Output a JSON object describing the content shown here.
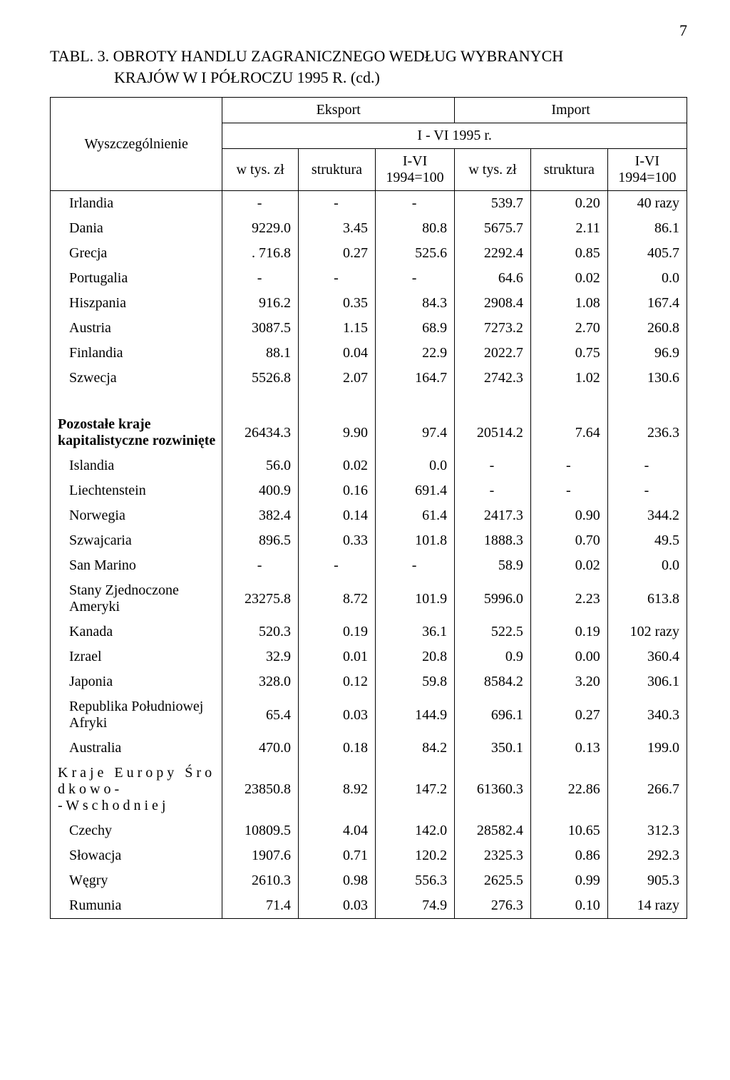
{
  "page_number": "7",
  "title": "TABL. 3. OBROTY HANDLU ZAGRANICZNEGO WEDŁUG WYBRANYCH",
  "subtitle": "KRAJÓW W I PÓŁROCZU 1995 R. (cd.)",
  "header": {
    "wys": "Wyszczególnienie",
    "eksport": "Eksport",
    "import": "Import",
    "period": "I - VI 1995 r.",
    "wtys": "w tys. zł",
    "struktura": "struktura",
    "idx": "I-VI 1994=100"
  },
  "rows": [
    {
      "indent": 1,
      "label": "Irlandia",
      "e1": "-",
      "e2": "-",
      "e3": "-",
      "i1": "539.7",
      "i2": "0.20",
      "i3": "40 razy"
    },
    {
      "indent": 1,
      "label": "Dania",
      "e1": "9229.0",
      "e2": "3.45",
      "e3": "80.8",
      "i1": "5675.7",
      "i2": "2.11",
      "i3": "86.1"
    },
    {
      "indent": 1,
      "label": "Grecja",
      "e1": ". 716.8",
      "e2": "0.27",
      "e3": "525.6",
      "i1": "2292.4",
      "i2": "0.85",
      "i3": "405.7"
    },
    {
      "indent": 1,
      "label": "Portugalia",
      "e1": "-",
      "e2": "-",
      "e3": "-",
      "i1": "64.6",
      "i2": "0.02",
      "i3": "0.0"
    },
    {
      "indent": 1,
      "label": "Hiszpania",
      "e1": "916.2",
      "e2": "0.35",
      "e3": "84.3",
      "i1": "2908.4",
      "i2": "1.08",
      "i3": "167.4"
    },
    {
      "indent": 1,
      "label": "Austria",
      "e1": "3087.5",
      "e2": "1.15",
      "e3": "68.9",
      "i1": "7273.2",
      "i2": "2.70",
      "i3": "260.8"
    },
    {
      "indent": 1,
      "label": "Finlandia",
      "e1": "88.1",
      "e2": "0.04",
      "e3": "22.9",
      "i1": "2022.7",
      "i2": "0.75",
      "i3": "96.9"
    },
    {
      "indent": 1,
      "label": "Szwecja",
      "e1": "5526.8",
      "e2": "2.07",
      "e3": "164.7",
      "i1": "2742.3",
      "i2": "1.02",
      "i3": "130.6"
    },
    {
      "spacer": true
    },
    {
      "indent": 0,
      "bold": true,
      "label": "Pozostałe kraje kapitalistyczne rozwinięte",
      "e1": "26434.3",
      "e2": "9.90",
      "e3": "97.4",
      "i1": "20514.2",
      "i2": "7.64",
      "i3": "236.3"
    },
    {
      "indent": 1,
      "label": "Islandia",
      "e1": "56.0",
      "e2": "0.02",
      "e3": "0.0",
      "i1": "-",
      "i2": "-",
      "i3": "-"
    },
    {
      "indent": 1,
      "label": "Liechtenstein",
      "e1": "400.9",
      "e2": "0.16",
      "e3": "691.4",
      "i1": "-",
      "i2": "-",
      "i3": "-"
    },
    {
      "indent": 1,
      "label": "Norwegia",
      "e1": "382.4",
      "e2": "0.14",
      "e3": "61.4",
      "i1": "2417.3",
      "i2": "0.90",
      "i3": "344.2"
    },
    {
      "indent": 1,
      "label": "Szwajcaria",
      "e1": "896.5",
      "e2": "0.33",
      "e3": "101.8",
      "i1": "1888.3",
      "i2": "0.70",
      "i3": "49.5"
    },
    {
      "indent": 1,
      "label": "San Marino",
      "e1": "-",
      "e2": "-",
      "e3": "-",
      "i1": "58.9",
      "i2": "0.02",
      "i3": "0.0"
    },
    {
      "indent": 1,
      "label": "Stany Zjednoczone Ameryki",
      "e1": "23275.8",
      "e2": "8.72",
      "e3": "101.9",
      "i1": "5996.0",
      "i2": "2.23",
      "i3": "613.8"
    },
    {
      "indent": 1,
      "label": "Kanada",
      "e1": "520.3",
      "e2": "0.19",
      "e3": "36.1",
      "i1": "522.5",
      "i2": "0.19",
      "i3": "102 razy"
    },
    {
      "indent": 1,
      "label": "Izrael",
      "e1": "32.9",
      "e2": "0.01",
      "e3": "20.8",
      "i1": "0.9",
      "i2": "0.00",
      "i3": "360.4"
    },
    {
      "indent": 1,
      "label": "Japonia",
      "e1": "328.0",
      "e2": "0.12",
      "e3": "59.8",
      "i1": "8584.2",
      "i2": "3.20",
      "i3": "306.1"
    },
    {
      "indent": 1,
      "label": "Republika Południowej Afryki",
      "e1": "65.4",
      "e2": "0.03",
      "e3": "144.9",
      "i1": "696.1",
      "i2": "0.27",
      "i3": "340.3"
    },
    {
      "indent": 1,
      "label": "Australia",
      "e1": "470.0",
      "e2": "0.18",
      "e3": "84.2",
      "i1": "350.1",
      "i2": "0.13",
      "i3": "199.0"
    },
    {
      "indent": 0,
      "sp": true,
      "label": "K r a j e   E u r o p y   Ś r o d k o w o -\n- W s c h o d n i e j",
      "e1": "23850.8",
      "e2": "8.92",
      "e3": "147.2",
      "i1": "61360.3",
      "i2": "22.86",
      "i3": "266.7"
    },
    {
      "indent": 1,
      "label": "Czechy",
      "e1": "10809.5",
      "e2": "4.04",
      "e3": "142.0",
      "i1": "28582.4",
      "i2": "10.65",
      "i3": "312.3"
    },
    {
      "indent": 1,
      "label": "Słowacja",
      "e1": "1907.6",
      "e2": "0.71",
      "e3": "120.2",
      "i1": "2325.3",
      "i2": "0.86",
      "i3": "292.3"
    },
    {
      "indent": 1,
      "label": "Węgry",
      "e1": "2610.3",
      "e2": "0.98",
      "e3": "556.3",
      "i1": "2625.5",
      "i2": "0.99",
      "i3": "905.3"
    },
    {
      "indent": 1,
      "last": true,
      "label": "Rumunia",
      "e1": "71.4",
      "e2": "0.03",
      "e3": "74.9",
      "i1": "276.3",
      "i2": "0.10",
      "i3": "14 razy"
    }
  ]
}
